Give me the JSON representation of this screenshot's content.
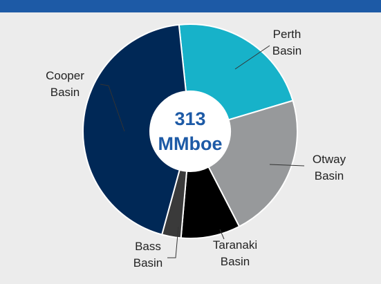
{
  "chart_data": {
    "type": "donut",
    "center_label": "313 MMboe",
    "categories": [
      "Perth Basin",
      "Otway Basin",
      "Taranaki Basin",
      "Bass Basin",
      "Cooper Basin"
    ],
    "values": [
      69,
      69,
      28,
      9,
      138
    ],
    "colors": [
      "#17b2c9",
      "#97999b",
      "#000000",
      "#3a3a3a",
      "#002856"
    ]
  }
}
